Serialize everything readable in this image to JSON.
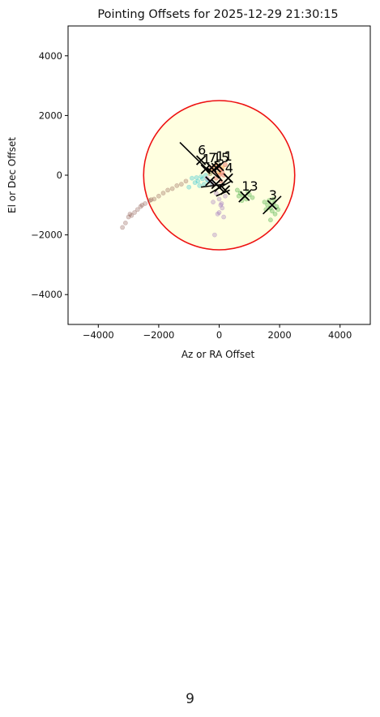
{
  "chart_data": {
    "type": "scatter",
    "title": "Pointing Offsets for 2025-12-29 21:30:15",
    "xlabel": "Az or RA Offset",
    "ylabel": "El or Dec Offset",
    "xlim": [
      -5000,
      5000
    ],
    "ylim": [
      -5000,
      5000
    ],
    "xticks": [
      -4000,
      -2000,
      0,
      2000,
      4000
    ],
    "yticks": [
      -4000,
      -2000,
      0,
      2000,
      4000
    ],
    "x_tick_labels": [
      "−4000",
      "−2000",
      "0",
      "2000",
      "4000"
    ],
    "y_tick_labels": [
      "−4000",
      "−2000",
      "0",
      "2000",
      "4000"
    ],
    "grid": false,
    "circle": {
      "center": [
        0,
        0
      ],
      "radius": 2500,
      "edge_color": "#ee1111",
      "fill_color": "#ffffe0"
    },
    "series": [
      {
        "color": "#8c564b",
        "points": [
          [
            -3200,
            -1750
          ],
          [
            -3100,
            -1600
          ],
          [
            -3000,
            -1400
          ],
          [
            -2950,
            -1300
          ],
          [
            -2800,
            -1250
          ],
          [
            -2700,
            -1150
          ],
          [
            -2600,
            -1050
          ],
          [
            -2450,
            -950
          ],
          [
            -2300,
            -850
          ],
          [
            -2150,
            -800
          ],
          [
            -2000,
            -700
          ],
          [
            -1850,
            -600
          ],
          [
            -1700,
            -500
          ],
          [
            -1550,
            -450
          ],
          [
            -1400,
            -350
          ],
          [
            -1250,
            -300
          ],
          [
            -1100,
            -200
          ],
          [
            -2900,
            -1350
          ],
          [
            -2550,
            -1000
          ],
          [
            -2250,
            -820
          ]
        ]
      },
      {
        "color": "#17becf",
        "points": [
          [
            -900,
            -100
          ],
          [
            -800,
            -250
          ],
          [
            -700,
            -200
          ],
          [
            -600,
            -50
          ],
          [
            -500,
            -300
          ],
          [
            -400,
            -150
          ],
          [
            -300,
            50
          ],
          [
            -650,
            -350
          ],
          [
            -1000,
            -400
          ],
          [
            -450,
            0
          ],
          [
            -550,
            -120
          ],
          [
            -250,
            -250
          ],
          [
            -750,
            -80
          ],
          [
            -350,
            -200
          ]
        ]
      },
      {
        "color": "#9467bd",
        "points": [
          [
            -100,
            -600
          ],
          [
            0,
            -800
          ],
          [
            50,
            -1000
          ],
          [
            100,
            -1100
          ],
          [
            -50,
            -1300
          ],
          [
            150,
            -1400
          ],
          [
            0,
            -1250
          ],
          [
            -200,
            -900
          ],
          [
            200,
            -700
          ],
          [
            -150,
            -2000
          ],
          [
            80,
            -950
          ]
        ]
      },
      {
        "color": "#d62728",
        "points": [
          [
            -150,
            100
          ],
          [
            -50,
            300
          ],
          [
            50,
            200
          ],
          [
            150,
            0
          ],
          [
            -100,
            -100
          ],
          [
            50,
            -200
          ],
          [
            200,
            350
          ],
          [
            -250,
            250
          ],
          [
            100,
            100
          ],
          [
            0,
            0
          ]
        ]
      },
      {
        "color": "#ff7f0e",
        "points": [
          [
            -200,
            200
          ],
          [
            -100,
            350
          ],
          [
            0,
            100
          ],
          [
            -300,
            50
          ],
          [
            100,
            250
          ]
        ]
      },
      {
        "color": "#e377c2",
        "points": [
          [
            -300,
            -200
          ],
          [
            -200,
            -300
          ],
          [
            -400,
            -100
          ]
        ]
      },
      {
        "color": "#2ca02c",
        "points": [
          [
            600,
            -500
          ],
          [
            700,
            -600
          ],
          [
            800,
            -700
          ],
          [
            900,
            -800
          ],
          [
            1000,
            -650
          ],
          [
            1100,
            -750
          ],
          [
            750,
            -850
          ],
          [
            950,
            -550
          ],
          [
            650,
            -700
          ],
          [
            1500,
            -900
          ],
          [
            1600,
            -1000
          ],
          [
            1700,
            -1100
          ],
          [
            1800,
            -950
          ],
          [
            1900,
            -1050
          ],
          [
            1750,
            -1200
          ],
          [
            1650,
            -850
          ],
          [
            1850,
            -1300
          ],
          [
            1550,
            -1150
          ],
          [
            1700,
            -1500
          ],
          [
            1800,
            -800
          ],
          [
            1950,
            -1150
          ]
        ]
      }
    ],
    "markers": [
      {
        "label": "6",
        "x": -600,
        "y": 500
      },
      {
        "label": "1",
        "x": -450,
        "y": 200
      },
      {
        "label": "7",
        "x": -250,
        "y": 250
      },
      {
        "label": "15",
        "x": -100,
        "y": 250
      },
      {
        "label": "11",
        "x": 0,
        "y": 300
      },
      {
        "label": "",
        "x": -300,
        "y": -200
      },
      {
        "label": "",
        "x": -100,
        "y": -300
      },
      {
        "label": "",
        "x": 0,
        "y": -400
      },
      {
        "label": "",
        "x": 200,
        "y": -500
      },
      {
        "label": "4",
        "x": 300,
        "y": -100
      },
      {
        "label": "13",
        "x": 850,
        "y": -700
      },
      {
        "label": "3",
        "x": 1750,
        "y": -1000
      }
    ],
    "vectors": [
      [
        [
          -1300,
          1100
        ],
        [
          -600,
          400
        ]
      ],
      [
        [
          -600,
          400
        ],
        [
          -300,
          100
        ]
      ],
      [
        [
          -400,
          250
        ],
        [
          0,
          -100
        ]
      ],
      [
        [
          -200,
          200
        ],
        [
          100,
          -200
        ]
      ],
      [
        [
          -600,
          -400
        ],
        [
          200,
          -300
        ]
      ],
      [
        [
          -300,
          -600
        ],
        [
          400,
          -200
        ]
      ],
      [
        [
          -100,
          -700
        ],
        [
          350,
          -500
        ]
      ],
      [
        [
          1450,
          -1300
        ],
        [
          2050,
          -700
        ]
      ],
      [
        [
          650,
          -900
        ],
        [
          1050,
          -500
        ]
      ]
    ]
  },
  "page_number": "9"
}
